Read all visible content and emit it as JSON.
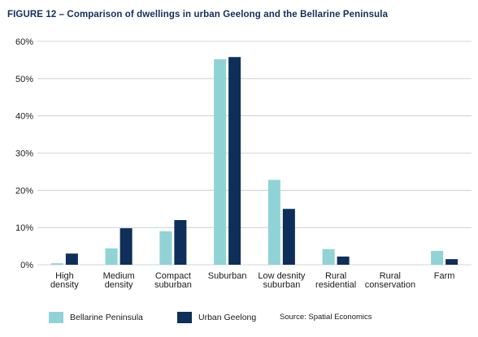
{
  "figure_title": "FIGURE 12 – Comparison of dwellings in urban Geelong and the Bellarine Peninsula",
  "source": "Source: Spatial Economics",
  "colors": {
    "bellarine": "#8fd3d6",
    "geelong": "#0d2f5a"
  },
  "chart_data": {
    "type": "bar",
    "categories": [
      [
        "High",
        "density"
      ],
      [
        "Medium",
        "density"
      ],
      [
        "Compact",
        "suburban"
      ],
      [
        "Suburban"
      ],
      [
        "Low desnity",
        "suburban"
      ],
      [
        "Rural",
        "residential"
      ],
      [
        "Rural",
        "conservation"
      ],
      [
        "Farm"
      ]
    ],
    "series": [
      {
        "name": "Bellarine Peninsula",
        "values": [
          0.4,
          4.4,
          9.0,
          55.2,
          22.8,
          4.2,
          0,
          3.7
        ]
      },
      {
        "name": "Urban Geelong",
        "values": [
          3.0,
          9.8,
          12.0,
          55.8,
          15.0,
          2.2,
          0,
          1.5
        ]
      }
    ],
    "yticks": [
      "0%",
      "10%",
      "20%",
      "30%",
      "40%",
      "50%",
      "60%"
    ],
    "ylim": [
      0,
      60
    ],
    "grid": true,
    "legend": "bottom-left"
  }
}
